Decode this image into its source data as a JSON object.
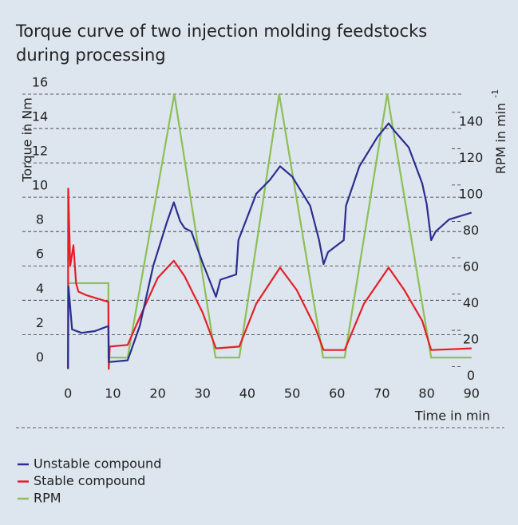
{
  "chart_data": {
    "type": "line",
    "title": [
      "Torque curve of two injection molding feedstocks",
      "during processing"
    ],
    "ylabel": "Torque  in Nm",
    "y2label": "RPM in min",
    "y2label_superscript": "-1",
    "xlabel": "Time in min",
    "xlim": [
      -2,
      92
    ],
    "xticks": [
      0,
      10,
      20,
      30,
      40,
      50,
      60,
      70,
      80,
      90
    ],
    "ylim": [
      -0.4,
      16
    ],
    "yticks": [
      0,
      2,
      4,
      6,
      8,
      10,
      12,
      14,
      16
    ],
    "y2lim": [
      -5,
      150
    ],
    "y2ticks": [
      0,
      20,
      40,
      60,
      80,
      100,
      120,
      140
    ],
    "grid": true,
    "series": [
      {
        "name": "Unstable compound",
        "color": "#2b2e8f",
        "x": [
          0,
          0.1,
          0.9,
          3,
          6,
          9,
          9.1,
          13.3,
          16,
          19,
          22,
          23.6,
          25,
          26,
          27.5,
          30,
          33,
          34,
          37.5,
          38,
          42,
          45,
          47.3,
          50,
          54,
          56,
          57,
          58,
          61.5,
          62,
          65,
          69,
          71.5,
          73,
          76,
          79,
          80,
          81,
          82,
          85,
          90
        ],
        "values": [
          0,
          4.8,
          2.3,
          2.1,
          2.2,
          2.5,
          0.4,
          0.5,
          2.5,
          6,
          8.5,
          9.7,
          8.6,
          8.2,
          8.0,
          6.2,
          4.2,
          5.2,
          5.5,
          7.5,
          10.2,
          11,
          11.8,
          11.2,
          9.5,
          7.5,
          6.1,
          6.8,
          7.5,
          9.5,
          11.8,
          13.5,
          14.3,
          13.8,
          12.9,
          10.8,
          9.6,
          7.5,
          8.0,
          8.7,
          9.1
        ]
      },
      {
        "name": "Stable compound",
        "color": "#e51f28",
        "x": [
          0,
          0.05,
          0.5,
          1.2,
          1.8,
          2.3,
          4,
          9,
          9.1,
          9.3,
          13.3,
          16,
          20,
          23.6,
          26,
          30,
          33,
          38.2,
          42,
          47.3,
          51,
          55,
          57,
          61.7,
          66,
          71.5,
          75,
          79,
          81,
          90
        ],
        "values": [
          0,
          10.5,
          6,
          7.2,
          5,
          4.5,
          4.3,
          3.9,
          0,
          1.3,
          1.4,
          3.0,
          5.3,
          6.3,
          5.4,
          3.3,
          1.2,
          1.3,
          3.8,
          5.9,
          4.6,
          2.5,
          1.1,
          1.1,
          3.8,
          5.9,
          4.6,
          2.8,
          1.1,
          1.2
        ]
      },
      {
        "name": "RPM",
        "color": "#8dbf56",
        "axis": "y2",
        "x": [
          0,
          9,
          9,
          13.3,
          23.7,
          32.9,
          38.2,
          47.1,
          56.9,
          61.7,
          71.2,
          81,
          90
        ],
        "values": [
          46,
          46,
          5,
          5,
          150,
          5,
          5,
          150,
          5,
          5,
          150,
          5,
          5
        ]
      }
    ]
  }
}
